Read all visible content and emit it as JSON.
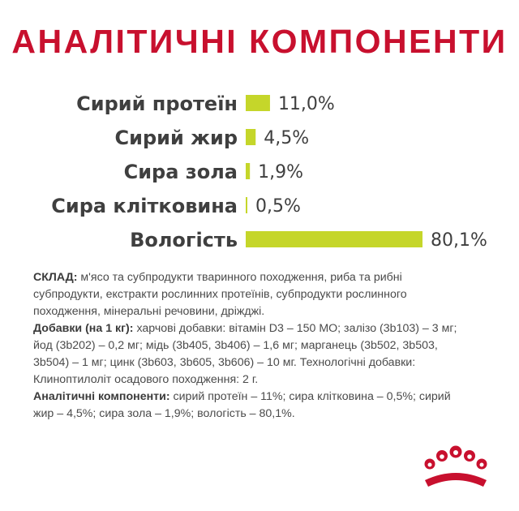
{
  "title": "АНАЛІТИЧНІ КОМПОНЕНТИ",
  "colors": {
    "title": "#c8102e",
    "bar": "#c5d62a",
    "label": "#3f3f3f",
    "logo": "#c8102e"
  },
  "chart_data": {
    "type": "bar",
    "orientation": "horizontal",
    "title": "АНАЛІТИЧНІ КОМПОНЕНТИ",
    "categories": [
      "Сирий протеїн",
      "Сирий жир",
      "Сира зола",
      "Сира клітковина",
      "Вологість"
    ],
    "values": [
      11.0,
      4.5,
      1.9,
      0.5,
      80.1
    ],
    "value_labels": [
      "11,0%",
      "4,5%",
      "1,9%",
      "0,5%",
      "80,1%"
    ],
    "unit": "%",
    "xlim": [
      0,
      80.1
    ],
    "grid": false,
    "legend": "none"
  },
  "composition": {
    "sklad_label": "СКЛАД:",
    "sklad_text": "м'ясо та субпродукти тваринного походження, риба та рибні субпродукти, екстракти рослинних протеїнів, субпродукти рослинного походження, мінеральні речовини, дріжджі.",
    "additives_label": "Добавки (на 1 кг):",
    "additives_text": "харчові добавки: вітамін D3 – 150 МО; залізо (3b103) – 3 мг; йод (3b202) – 0,2 мг; мідь (3b405, 3b406) – 1,6 мг; марганець (3b502, 3b503, 3b504) – 1 мг; цинк (3b603, 3b605, 3b606) – 10 мг. Технологічні добавки: Клиноптилолiт осадового походження: 2 г.",
    "analytic_label": "Аналітичні компоненти:",
    "analytic_text": "сирий протеїн – 11%; сира клітковина – 0,5%; сирий жир – 4,5%; сира зола – 1,9%; вологість – 80,1%."
  },
  "logo": {
    "icon": "royal-canin-crown-icon"
  }
}
